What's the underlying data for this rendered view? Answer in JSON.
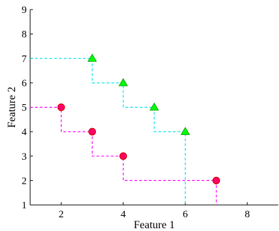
{
  "chart_data": {
    "type": "scatter",
    "xlabel": "Feature 1",
    "ylabel": "Feature 2",
    "xlim": [
      1,
      9
    ],
    "ylim": [
      1,
      9
    ],
    "xticks": [
      2,
      4,
      6,
      8
    ],
    "yticks": [
      1,
      2,
      3,
      4,
      5,
      6,
      7,
      8,
      9
    ],
    "grid": false,
    "series": [
      {
        "marker": "triangle",
        "marker_color": "#00ff00",
        "step_color": "#00e5ee",
        "points": [
          [
            3,
            7
          ],
          [
            4,
            6
          ],
          [
            5,
            5
          ],
          [
            6,
            4
          ]
        ],
        "staircase": [
          [
            1,
            7
          ],
          [
            3,
            7
          ],
          [
            3,
            6
          ],
          [
            4,
            6
          ],
          [
            4,
            5
          ],
          [
            5,
            5
          ],
          [
            5,
            4
          ],
          [
            6,
            4
          ],
          [
            6,
            1
          ]
        ]
      },
      {
        "marker": "circle",
        "marker_color": "#ff0066",
        "step_color": "#ff00ff",
        "points": [
          [
            2,
            5
          ],
          [
            3,
            4
          ],
          [
            4,
            3
          ],
          [
            7,
            2
          ]
        ],
        "staircase": [
          [
            1,
            5
          ],
          [
            2,
            5
          ],
          [
            2,
            4
          ],
          [
            3,
            4
          ],
          [
            3,
            3
          ],
          [
            4,
            3
          ],
          [
            4,
            2
          ],
          [
            7,
            2
          ],
          [
            7,
            1
          ]
        ]
      }
    ]
  }
}
